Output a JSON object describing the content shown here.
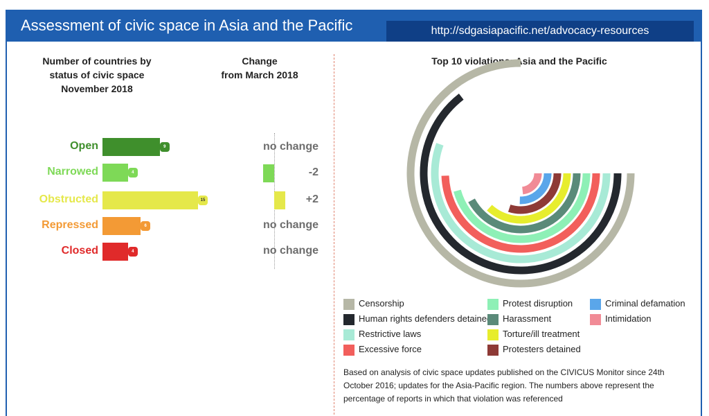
{
  "header": {
    "title": "Assessment of civic space in Asia and the Pacific",
    "url": "http://sdgasiapacific.net/advocacy-resources"
  },
  "left": {
    "heading_lines": [
      "Number of countries by",
      "status of civic space",
      "November 2018"
    ],
    "change_heading_lines": [
      "Change",
      "from March 2018"
    ]
  },
  "right": {
    "heading": "Top 10 violations: Asia and the Pacific"
  },
  "note": "Based on analysis of civic space updates published on the CIVICUS Monitor since 24th October 2016; updates for the Asia-Pacific region. The numbers above represent the percentage of reports in which that violation was referenced",
  "chart_data": [
    {
      "type": "bar",
      "title": "Number of countries by status of civic space November 2018",
      "categories": [
        "Open",
        "Narrowed",
        "Obstructed",
        "Repressed",
        "Closed"
      ],
      "values": [
        9,
        4,
        15,
        6,
        4
      ],
      "colors": [
        "#3f8f2c",
        "#7ed957",
        "#e5e84a",
        "#f39a35",
        "#e02a2a"
      ],
      "value_labels": [
        "9",
        "4",
        "15",
        "6",
        "4"
      ]
    },
    {
      "type": "bar",
      "title": "Change from March 2018",
      "categories": [
        "Open",
        "Narrowed",
        "Obstructed",
        "Repressed",
        "Closed"
      ],
      "values": [
        0,
        -2,
        2,
        0,
        0
      ],
      "labels": [
        "no change",
        "-2",
        "+2",
        "no change",
        "no change"
      ],
      "colors": [
        "#3f8f2c",
        "#7ed957",
        "#e5e84a",
        "#f39a35",
        "#e02a2a"
      ]
    },
    {
      "type": "bar",
      "subtype": "radial",
      "title": "Top 10 violations: Asia and the Pacific",
      "series": [
        {
          "name": "Censorship",
          "value": 100,
          "color": "#b6b7a6"
        },
        {
          "name": "Human rights defenders detained",
          "value": 86,
          "color": "#24282e"
        },
        {
          "name": "Restrictive laws",
          "value": 74,
          "color": "#a8ead6"
        },
        {
          "name": "Excessive force",
          "value": 66,
          "color": "#f25f5c"
        },
        {
          "name": "Protest disruption",
          "value": 61,
          "color": "#8ef0b6"
        },
        {
          "name": "Harassment",
          "value": 56,
          "color": "#5a8a79"
        },
        {
          "name": "Torture/ill treatment",
          "value": 49,
          "color": "#e7ed2d"
        },
        {
          "name": "Protesters detained",
          "value": 40,
          "color": "#8e3a36"
        },
        {
          "name": "Criminal defamation",
          "value": 34,
          "color": "#5aa6ea"
        },
        {
          "name": "Intimidation",
          "value": 31,
          "color": "#f18b96"
        }
      ]
    }
  ]
}
